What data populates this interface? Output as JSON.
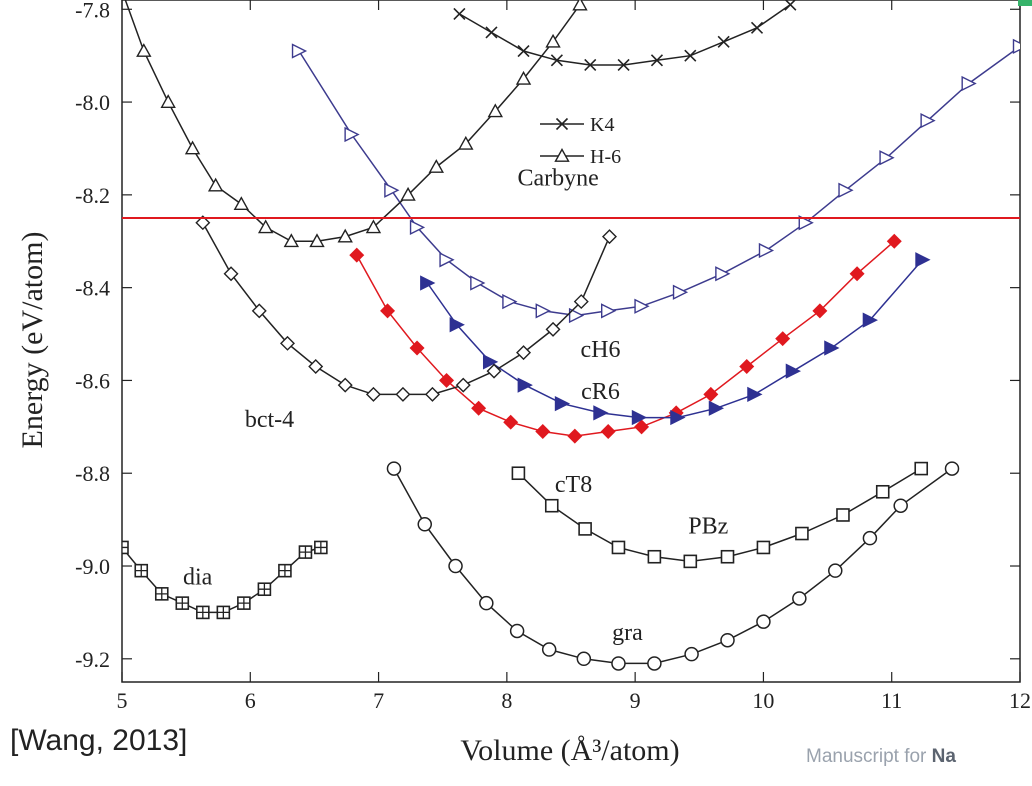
{
  "chart_data": {
    "type": "line",
    "xlabel": "Volume (Å³/atom)",
    "ylabel": "Energy (eV/atom)",
    "xlim": [
      5,
      12
    ],
    "ylim": [
      -9.25,
      -7.78
    ],
    "xticks": [
      5,
      6,
      7,
      8,
      9,
      10,
      11,
      12
    ],
    "yticks": [
      -7.8,
      -8.0,
      -8.2,
      -8.4,
      -8.6,
      -8.8,
      -9.0,
      -9.2
    ],
    "tick_labels_x": [
      "5",
      "6",
      "7",
      "8",
      "9",
      "10",
      "11",
      "12"
    ],
    "tick_labels_y": [
      "-7.8",
      "-8.0",
      "-8.2",
      "-8.4",
      "-8.6",
      "-8.8",
      "-9.0",
      "-9.2"
    ],
    "hline": {
      "y": -8.25,
      "color": "#e0191f"
    },
    "legend": {
      "placement": "top-center",
      "entries": [
        "K4",
        "H-6"
      ]
    },
    "series": [
      {
        "name": "dia",
        "marker": "square-plus",
        "color": "#222222",
        "x": [
          5.0,
          5.15,
          5.31,
          5.47,
          5.63,
          5.79,
          5.95,
          6.11,
          6.27,
          6.43,
          6.55
        ],
        "y": [
          -8.96,
          -9.01,
          -9.06,
          -9.08,
          -9.1,
          -9.1,
          -9.08,
          -9.05,
          -9.01,
          -8.97,
          -8.96
        ]
      },
      {
        "name": "gra",
        "marker": "circle-open",
        "color": "#222222",
        "x": [
          7.12,
          7.36,
          7.6,
          7.84,
          8.08,
          8.33,
          8.6,
          8.87,
          9.15,
          9.44,
          9.72,
          10.0,
          10.28,
          10.56,
          10.83,
          11.07,
          11.47
        ],
        "y": [
          -8.79,
          -8.91,
          -9.0,
          -9.08,
          -9.14,
          -9.18,
          -9.2,
          -9.21,
          -9.21,
          -9.19,
          -9.16,
          -9.12,
          -9.07,
          -9.01,
          -8.94,
          -8.87,
          -8.79
        ]
      },
      {
        "name": "PBz",
        "marker": "square-open",
        "color": "#222222",
        "x": [
          8.09,
          8.35,
          8.61,
          8.87,
          9.15,
          9.43,
          9.72,
          10.0,
          10.3,
          10.62,
          10.93,
          11.23
        ],
        "y": [
          -8.8,
          -8.87,
          -8.92,
          -8.96,
          -8.98,
          -8.99,
          -8.98,
          -8.96,
          -8.93,
          -8.89,
          -8.84,
          -8.79
        ]
      },
      {
        "name": "cT8",
        "marker": "diamond-filled",
        "color": "#e0191f",
        "x": [
          6.83,
          7.07,
          7.3,
          7.53,
          7.78,
          8.03,
          8.28,
          8.53,
          8.79,
          9.05,
          9.32,
          9.59,
          9.87,
          10.15,
          10.44,
          10.73,
          11.02
        ],
        "y": [
          -8.33,
          -8.45,
          -8.53,
          -8.6,
          -8.66,
          -8.69,
          -8.71,
          -8.72,
          -8.71,
          -8.7,
          -8.67,
          -8.63,
          -8.57,
          -8.51,
          -8.45,
          -8.37,
          -8.3
        ]
      },
      {
        "name": "cR6",
        "marker": "triangle-right-filled",
        "color": "#2e3192",
        "x": [
          7.38,
          7.61,
          7.87,
          8.14,
          8.43,
          8.73,
          9.03,
          9.33,
          9.63,
          9.93,
          10.23,
          10.53,
          10.83,
          11.24
        ],
        "y": [
          -8.39,
          -8.48,
          -8.56,
          -8.61,
          -8.65,
          -8.67,
          -8.68,
          -8.68,
          -8.66,
          -8.63,
          -8.58,
          -8.53,
          -8.47,
          -8.34
        ]
      },
      {
        "name": "cH6",
        "marker": "triangle-right-open",
        "color": "#3d3b8e",
        "x": [
          6.38,
          6.79,
          7.1,
          7.3,
          7.53,
          7.77,
          8.02,
          8.28,
          8.54,
          8.79,
          9.05,
          9.35,
          9.68,
          10.02,
          10.33,
          10.64,
          10.96,
          11.28,
          11.6,
          12.0
        ],
        "y": [
          -7.89,
          -8.07,
          -8.19,
          -8.27,
          -8.34,
          -8.39,
          -8.43,
          -8.45,
          -8.46,
          -8.45,
          -8.44,
          -8.41,
          -8.37,
          -8.32,
          -8.26,
          -8.19,
          -8.12,
          -8.04,
          -7.96,
          -7.88
        ]
      },
      {
        "name": "bct-4",
        "marker": "diamond-open",
        "color": "#222222",
        "x": [
          5.63,
          5.85,
          6.07,
          6.29,
          6.51,
          6.74,
          6.96,
          7.19,
          7.42,
          7.66,
          7.9,
          8.13,
          8.36,
          8.58,
          8.8
        ],
        "y": [
          -8.26,
          -8.37,
          -8.45,
          -8.52,
          -8.57,
          -8.61,
          -8.63,
          -8.63,
          -8.63,
          -8.61,
          -8.58,
          -8.54,
          -8.49,
          -8.43,
          -8.29
        ]
      },
      {
        "name": "H-6",
        "marker": "triangle-up-open",
        "color": "#222222",
        "x": [
          5.0,
          5.17,
          5.36,
          5.55,
          5.73,
          5.93,
          6.12,
          6.32,
          6.52,
          6.74,
          6.96,
          7.23,
          7.45,
          7.68,
          7.91,
          8.13,
          8.36,
          8.57
        ],
        "y": [
          -7.76,
          -7.89,
          -8.0,
          -8.1,
          -8.18,
          -8.22,
          -8.27,
          -8.3,
          -8.3,
          -8.29,
          -8.27,
          -8.2,
          -8.14,
          -8.09,
          -8.02,
          -7.95,
          -7.87,
          -7.79
        ]
      },
      {
        "name": "K4",
        "marker": "x",
        "color": "#222222",
        "x": [
          7.63,
          7.88,
          8.13,
          8.39,
          8.65,
          8.91,
          9.17,
          9.43,
          9.69,
          9.95,
          10.21
        ],
        "y": [
          -7.81,
          -7.85,
          -7.89,
          -7.91,
          -7.92,
          -7.92,
          -7.91,
          -7.9,
          -7.87,
          -7.84,
          -7.79
        ]
      }
    ],
    "annotations": [
      {
        "text": "Carbyne",
        "x": 8.4,
        "y": -8.18
      },
      {
        "text": "cH6",
        "x": 8.73,
        "y": -8.55
      },
      {
        "text": "cR6",
        "x": 8.73,
        "y": -8.64
      },
      {
        "text": "bct-4",
        "x": 6.15,
        "y": -8.7
      },
      {
        "text": "cT8",
        "x": 8.52,
        "y": -8.84
      },
      {
        "text": "PBz",
        "x": 9.57,
        "y": -8.93
      },
      {
        "text": "dia",
        "x": 5.59,
        "y": -9.04
      },
      {
        "text": "gra",
        "x": 8.94,
        "y": -9.16
      }
    ]
  },
  "footer": {
    "citation": "[Wang, 2013]",
    "manuscript_prefix": "Manuscript for ",
    "manuscript_bold": "Na"
  }
}
